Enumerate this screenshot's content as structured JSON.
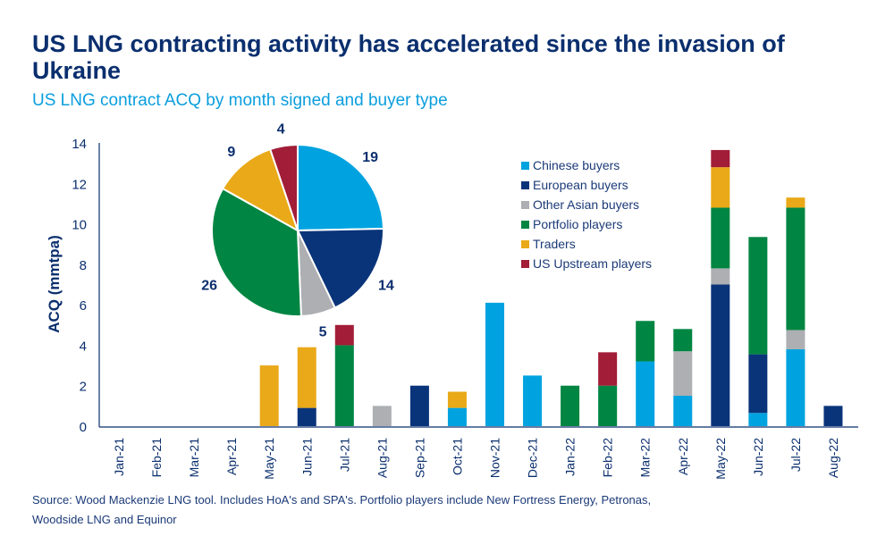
{
  "title": "US LNG contracting activity has accelerated since the invasion of Ukraine",
  "subtitle": "US LNG contract ACQ by month signed and buyer type",
  "source": "Source: Wood Mackenzie LNG tool. Includes HoA's and SPA's. Portfolio players include New Fortress Energy, Petronas, Woodside LNG and Equinor",
  "chart_data": [
    {
      "type": "bar",
      "stacked": true,
      "ylabel": "ACQ (mmtpa)",
      "ylim": [
        0,
        14
      ],
      "yticks": [
        0,
        2,
        4,
        6,
        8,
        10,
        12,
        14
      ],
      "grid": false,
      "legend_position": "top-right",
      "categories": [
        "Jan-21",
        "Feb-21",
        "Mar-21",
        "Apr-21",
        "May-21",
        "Jun-21",
        "Jul-21",
        "Aug-21",
        "Sep-21",
        "Oct-21",
        "Nov-21",
        "Dec-21",
        "Jan-22",
        "Feb-22",
        "Mar-22",
        "Apr-22",
        "May-22",
        "Jun-22",
        "Jul-22",
        "Aug-22"
      ],
      "series": [
        {
          "name": "Chinese buyers",
          "color": "#00a3e0",
          "values": [
            0,
            0,
            0,
            0,
            0,
            0,
            0,
            0,
            0,
            0.9,
            6.1,
            2.5,
            0,
            0,
            3.2,
            1.5,
            0,
            0.65,
            3.8,
            0
          ]
        },
        {
          "name": "European buyers",
          "color": "#0a347a",
          "values": [
            0,
            0,
            0,
            0,
            0,
            0.9,
            0,
            0,
            2.0,
            0,
            0,
            0,
            0,
            0,
            0,
            0,
            7.0,
            2.9,
            0,
            1.0
          ]
        },
        {
          "name": "Other Asian buyers",
          "color": "#adafb2",
          "values": [
            0,
            0,
            0,
            0,
            0,
            0,
            0,
            1.0,
            0,
            0,
            0,
            0,
            0,
            0,
            0,
            2.2,
            0.8,
            0,
            0.95,
            0
          ]
        },
        {
          "name": "Portfolio players",
          "color": "#008542",
          "values": [
            0,
            0,
            0,
            0,
            0,
            0,
            4.0,
            0,
            0,
            0,
            0,
            0,
            2.0,
            2.0,
            2.0,
            1.1,
            3.0,
            5.8,
            6.05,
            0
          ]
        },
        {
          "name": "Traders",
          "color": "#e9a918",
          "values": [
            0,
            0,
            0,
            0,
            3.0,
            3.0,
            0,
            0,
            0,
            0.8,
            0,
            0,
            0,
            0,
            0,
            0,
            2.0,
            0,
            0.5,
            0
          ]
        },
        {
          "name": "US Upstream players",
          "color": "#a21d37",
          "values": [
            0,
            0,
            0,
            0,
            0,
            0,
            1.0,
            0,
            0,
            0,
            0,
            0,
            0,
            1.65,
            0,
            0,
            0.85,
            0,
            0,
            0
          ]
        }
      ]
    },
    {
      "type": "pie",
      "slices": [
        {
          "name": "Chinese buyers",
          "value": 19,
          "color": "#00a3e0"
        },
        {
          "name": "European buyers",
          "value": 14,
          "color": "#0a347a"
        },
        {
          "name": "Other Asian buyers",
          "value": 5,
          "color": "#adafb2"
        },
        {
          "name": "Portfolio players",
          "value": 26,
          "color": "#008542"
        },
        {
          "name": "Traders",
          "value": 9,
          "color": "#e9a918"
        },
        {
          "name": "US Upstream players",
          "value": 4,
          "color": "#a21d37"
        }
      ]
    }
  ]
}
